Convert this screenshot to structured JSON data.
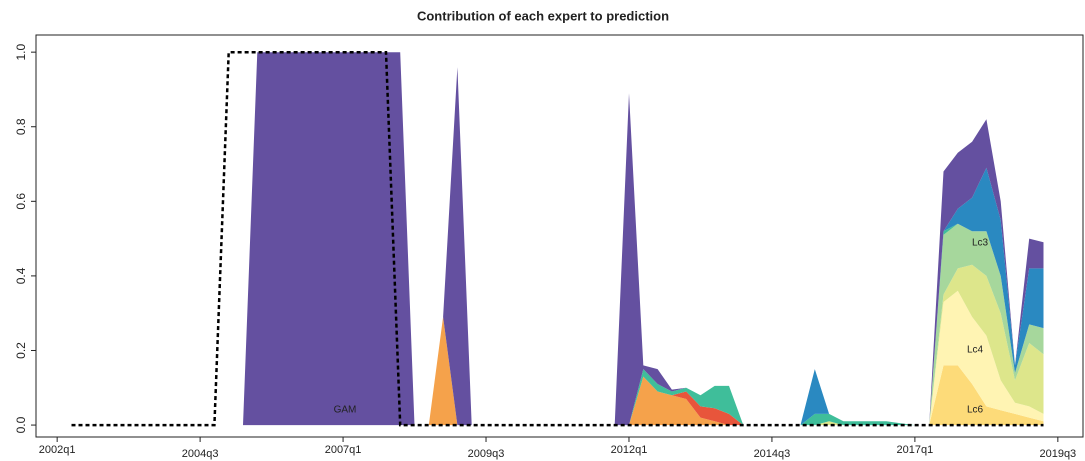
{
  "chart_data": {
    "type": "area",
    "title": "Contribution of each expert to prediction",
    "x": [
      2002.25,
      2002.5,
      2002.75,
      2003,
      2003.25,
      2003.5,
      2003.75,
      2004,
      2004.25,
      2004.5,
      2004.75,
      2005,
      2005.25,
      2005.5,
      2005.75,
      2006,
      2006.25,
      2006.5,
      2006.75,
      2007,
      2007.25,
      2007.5,
      2007.75,
      2008,
      2008.25,
      2008.5,
      2008.75,
      2009,
      2009.25,
      2009.5,
      2009.75,
      2010,
      2010.25,
      2010.5,
      2010.75,
      2011,
      2011.25,
      2011.5,
      2011.75,
      2012,
      2012.25,
      2012.5,
      2012.75,
      2013,
      2013.25,
      2013.5,
      2013.75,
      2014,
      2014.25,
      2014.5,
      2014.75,
      2015,
      2015.25,
      2015.5,
      2015.75,
      2016,
      2016.25,
      2016.5,
      2016.75,
      2017,
      2017.25,
      2017.5,
      2017.75,
      2018,
      2018.25,
      2018.5,
      2018.75,
      2019,
      2019.25
    ],
    "xlim": [
      2001.63,
      2019.94
    ],
    "xticks": [
      {
        "value": 2002,
        "label": "2002q1"
      },
      {
        "value": 2004.5,
        "label": "2004q3"
      },
      {
        "value": 2007,
        "label": "2007q1"
      },
      {
        "value": 2009.5,
        "label": "2009q3"
      },
      {
        "value": 2012,
        "label": "2012q1"
      },
      {
        "value": 2014.5,
        "label": "2014q3"
      },
      {
        "value": 2017,
        "label": "2017q1"
      },
      {
        "value": 2019.5,
        "label": "2019q3"
      }
    ],
    "ylim": [
      -0.032,
      1.046
    ],
    "yticks": [
      {
        "value": 0,
        "label": "0.0"
      },
      0.2,
      0.4,
      0.6,
      0.8,
      {
        "value": 1,
        "label": "1.0"
      }
    ],
    "series": [
      {
        "name": "Lc6",
        "color": "#fddb79",
        "values": [
          0,
          0,
          0,
          0,
          0,
          0,
          0,
          0,
          0,
          0,
          0,
          0,
          0,
          0,
          0,
          0,
          0,
          0,
          0,
          0,
          0,
          0,
          0,
          0,
          0,
          0,
          0,
          0,
          0,
          0,
          0,
          0,
          0,
          0,
          0,
          0,
          0,
          0,
          0,
          0,
          0,
          0,
          0,
          0,
          0,
          0,
          0,
          0,
          0,
          0,
          0,
          0,
          0,
          0,
          0,
          0,
          0,
          0,
          0,
          0,
          0,
          0.16,
          0.16,
          0.11,
          0.05,
          0.04,
          0.03,
          0.02,
          0.01
        ]
      },
      {
        "name": "Lc4",
        "color": "#fff4b3",
        "values": [
          0,
          0,
          0,
          0,
          0,
          0,
          0,
          0,
          0,
          0,
          0,
          0,
          0,
          0,
          0,
          0,
          0,
          0,
          0,
          0,
          0,
          0,
          0,
          0,
          0,
          0,
          0,
          0,
          0,
          0,
          0,
          0,
          0,
          0,
          0,
          0,
          0,
          0,
          0,
          0,
          0,
          0,
          0,
          0,
          0,
          0,
          0,
          0,
          0,
          0,
          0,
          0,
          0,
          0,
          0,
          0,
          0,
          0,
          0,
          0,
          0,
          0.17,
          0.2,
          0.18,
          0.19,
          0.08,
          0.03,
          0.03,
          0.02
        ]
      },
      {
        "color": "#dde68b",
        "values": [
          0,
          0,
          0,
          0,
          0,
          0,
          0,
          0,
          0,
          0,
          0,
          0,
          0,
          0,
          0,
          0,
          0,
          0,
          0,
          0,
          0,
          0,
          0,
          0,
          0,
          0,
          0,
          0,
          0,
          0,
          0,
          0,
          0,
          0,
          0,
          0,
          0,
          0,
          0,
          0,
          0,
          0,
          0,
          0,
          0,
          0,
          0,
          0,
          0,
          0,
          0,
          0,
          0,
          0.01,
          0,
          0,
          0,
          0,
          0,
          0,
          0,
          0.02,
          0.06,
          0.14,
          0.16,
          0.18,
          0.06,
          0.17,
          0.16
        ]
      },
      {
        "name": "Lc3",
        "color": "#a6d79c",
        "values": [
          0,
          0,
          0,
          0,
          0,
          0,
          0,
          0,
          0,
          0,
          0,
          0,
          0,
          0,
          0,
          0,
          0,
          0,
          0,
          0,
          0,
          0,
          0,
          0,
          0,
          0,
          0,
          0,
          0,
          0,
          0,
          0,
          0,
          0,
          0,
          0,
          0,
          0,
          0,
          0,
          0,
          0,
          0,
          0,
          0,
          0,
          0,
          0,
          0,
          0,
          0,
          0,
          0,
          0,
          0,
          0,
          0,
          0,
          0,
          0,
          0,
          0.16,
          0.12,
          0.09,
          0.12,
          0.1,
          0.02,
          0.05,
          0.07
        ]
      },
      {
        "color": "#f5a24b",
        "values": [
          0,
          0,
          0,
          0,
          0,
          0,
          0,
          0,
          0,
          0,
          0,
          0,
          0,
          0,
          0,
          0,
          0,
          0,
          0,
          0,
          0,
          0,
          0,
          0,
          0,
          0,
          0.29,
          0,
          0,
          0,
          0,
          0,
          0,
          0,
          0,
          0,
          0,
          0,
          0,
          0,
          0.13,
          0.09,
          0.08,
          0.07,
          0.02,
          0.01,
          0,
          0,
          0,
          0,
          0,
          0,
          0,
          0,
          0,
          0,
          0,
          0,
          0,
          0,
          0,
          0,
          0,
          0,
          0,
          0,
          0,
          0,
          0
        ]
      },
      {
        "color": "#e8553b",
        "values": [
          0,
          0,
          0,
          0,
          0,
          0,
          0,
          0,
          0,
          0,
          0,
          0,
          0,
          0,
          0,
          0,
          0,
          0,
          0,
          0,
          0,
          0,
          0,
          0,
          0,
          0,
          0,
          0,
          0,
          0,
          0,
          0,
          0,
          0,
          0,
          0,
          0,
          0,
          0,
          0,
          0,
          0,
          0,
          0.02,
          0.03,
          0.035,
          0.03,
          0,
          0,
          0,
          0,
          0,
          0,
          0,
          0,
          0,
          0,
          0,
          0,
          0,
          0,
          0,
          0,
          0,
          0,
          0,
          0,
          0,
          0
        ]
      },
      {
        "color": "#3fbe9a",
        "values": [
          0,
          0,
          0,
          0,
          0,
          0,
          0,
          0,
          0,
          0,
          0,
          0,
          0,
          0,
          0,
          0,
          0,
          0,
          0,
          0,
          0,
          0,
          0,
          0,
          0,
          0,
          0,
          0,
          0,
          0,
          0,
          0,
          0,
          0,
          0,
          0,
          0,
          0,
          0,
          0,
          0.02,
          0.02,
          0.01,
          0.01,
          0.03,
          0.06,
          0.075,
          0,
          0,
          0,
          0,
          0,
          0.03,
          0.02,
          0.01,
          0.01,
          0.01,
          0.01,
          0.005,
          0,
          0,
          0.01,
          0,
          0,
          0,
          0,
          0,
          0,
          0
        ]
      },
      {
        "color": "#2a89c1",
        "values": [
          0,
          0,
          0,
          0,
          0,
          0,
          0,
          0,
          0,
          0,
          0,
          0,
          0,
          0,
          0,
          0,
          0,
          0,
          0,
          0,
          0,
          0,
          0,
          0,
          0,
          0,
          0,
          0,
          0,
          0,
          0,
          0,
          0,
          0,
          0,
          0,
          0,
          0,
          0,
          0,
          0,
          0,
          0,
          0,
          0,
          0,
          0,
          0,
          0,
          0,
          0,
          0,
          0.12,
          0,
          0,
          0,
          0,
          0,
          0,
          0,
          0,
          0,
          0.04,
          0.09,
          0.17,
          0.15,
          0.02,
          0.15,
          0.16
        ]
      },
      {
        "name": "GAM",
        "color": "#6450a0",
        "values": [
          0,
          0,
          0,
          0,
          0,
          0,
          0,
          0,
          0,
          0,
          0,
          0,
          0,
          1,
          1,
          1,
          1,
          1,
          1,
          1,
          1,
          1,
          1,
          1,
          0,
          0,
          0,
          0.96,
          0,
          0,
          0,
          0,
          0,
          0,
          0,
          0,
          0,
          0,
          0,
          0.89,
          0.01,
          0.04,
          0.005,
          0,
          0,
          0,
          0,
          0,
          0,
          0,
          0,
          0,
          0,
          0,
          0,
          0,
          0,
          0,
          0,
          0,
          0,
          0.16,
          0.15,
          0.15,
          0.13,
          0.05,
          0,
          0.08,
          0.07
        ]
      },
      {
        "type": "line",
        "color": "#000000",
        "values": [
          0,
          0,
          0,
          0,
          0,
          0,
          0,
          0,
          0,
          0,
          0,
          1,
          1,
          1,
          1,
          1,
          1,
          1,
          1,
          1,
          1,
          1,
          1,
          0,
          0,
          0,
          0,
          0,
          0,
          0,
          0,
          0,
          0,
          0,
          0,
          0,
          0,
          0,
          0,
          0,
          0,
          0,
          0,
          0,
          0,
          0,
          0,
          0,
          0,
          0,
          0,
          0,
          0,
          0,
          0,
          0,
          0,
          0,
          0,
          0,
          0,
          0,
          0,
          0,
          0,
          0,
          0,
          0,
          0
        ]
      }
    ]
  }
}
